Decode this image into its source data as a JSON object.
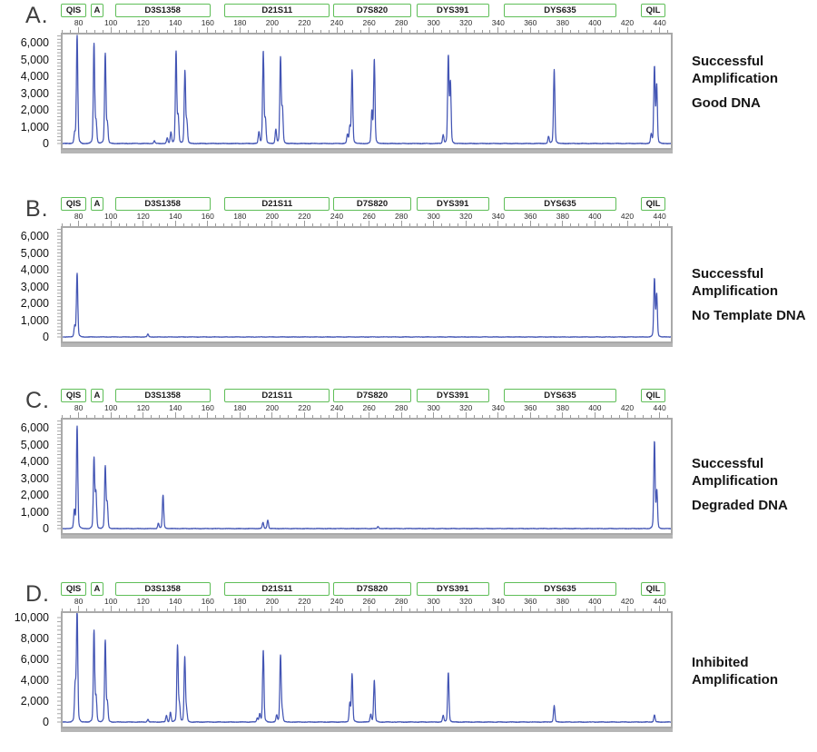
{
  "figure": {
    "colors": {
      "trace": "#4355b4",
      "frame": "#a9a9a9",
      "shadow": "#b6b6b6",
      "tick": "#9b9b9b",
      "marker_border": "#5fbe58",
      "marker_text": "#1d1d1d",
      "axis_text": "#111111",
      "letter_text": "#3f3f3f"
    },
    "x_domain": [
      69,
      447
    ],
    "x_unit": "bp",
    "y_unit": "RFU",
    "ruler_labels": [
      80,
      100,
      120,
      140,
      160,
      180,
      200,
      220,
      240,
      260,
      280,
      300,
      320,
      340,
      360,
      380,
      400,
      420,
      440
    ],
    "minor_tick_step": 5,
    "markers": [
      {
        "label": "QIS",
        "from": 69,
        "to": 83.6
      },
      {
        "label": "A",
        "from": 87.5,
        "to": 94.3
      },
      {
        "label": "D3S1358",
        "from": 102.5,
        "to": 160.5
      },
      {
        "label": "D21S11",
        "from": 170.5,
        "to": 234.5
      },
      {
        "label": "D7S820",
        "from": 237.8,
        "to": 285
      },
      {
        "label": "DYS391",
        "from": 289.4,
        "to": 333.2
      },
      {
        "label": "DYS635",
        "from": 343.3,
        "to": 412.3
      },
      {
        "label": "QIL",
        "from": 428.5,
        "to": 442.5
      }
    ]
  },
  "chart_data": [
    {
      "type": "line",
      "panel": "A.",
      "annotation_title": "Successful Amplification",
      "annotation_subtitle": "Good DNA",
      "yticks": [
        0,
        1000,
        2000,
        3000,
        4000,
        5000,
        6000
      ],
      "ytick_labels": [
        "0",
        "1,000",
        "2,000",
        "3,000",
        "4,000",
        "5,000",
        "6,000"
      ],
      "y_minor_step": 200,
      "noise_amp": 30,
      "peaks": [
        [
          76.5,
          550
        ],
        [
          78,
          6100
        ],
        [
          88.5,
          5650
        ],
        [
          89.8,
          1200
        ],
        [
          95.5,
          5100
        ],
        [
          96.8,
          1100
        ],
        [
          126,
          150
        ],
        [
          134,
          300
        ],
        [
          136.3,
          650
        ],
        [
          139.5,
          5200
        ],
        [
          140.8,
          1500
        ],
        [
          145,
          4100
        ],
        [
          146.2,
          1200
        ],
        [
          191,
          650
        ],
        [
          193.7,
          5200
        ],
        [
          195,
          1300
        ],
        [
          201.5,
          800
        ],
        [
          204.4,
          4850
        ],
        [
          205.6,
          1900
        ],
        [
          246,
          500
        ],
        [
          247.5,
          900
        ],
        [
          248.9,
          4150
        ],
        [
          261.2,
          1800
        ],
        [
          262.7,
          4750
        ],
        [
          305.5,
          500
        ],
        [
          308.7,
          4900
        ],
        [
          310,
          3400
        ],
        [
          371,
          400
        ],
        [
          374.5,
          4200
        ],
        [
          434.8,
          500
        ],
        [
          436.8,
          4300
        ],
        [
          438.2,
          3300
        ]
      ]
    },
    {
      "type": "line",
      "panel": "B.",
      "annotation_title": "Successful Amplification",
      "annotation_subtitle": "No Template DNA",
      "yticks": [
        0,
        1000,
        2000,
        3000,
        4000,
        5000,
        6000
      ],
      "ytick_labels": [
        "0",
        "1,000",
        "2,000",
        "3,000",
        "4,000",
        "5,000",
        "6,000"
      ],
      "y_minor_step": 200,
      "noise_amp": 22,
      "peaks": [
        [
          76.5,
          600
        ],
        [
          78,
          3600
        ],
        [
          122,
          160
        ],
        [
          436.8,
          3250
        ],
        [
          438.2,
          2400
        ]
      ]
    },
    {
      "type": "line",
      "panel": "C.",
      "annotation_title": "Successful Amplification",
      "annotation_subtitle": "Degraded DNA",
      "yticks": [
        0,
        1000,
        2000,
        3000,
        4000,
        5000,
        6000
      ],
      "ytick_labels": [
        "0",
        "1,000",
        "2,000",
        "3,000",
        "4,000",
        "5,000",
        "6,000"
      ],
      "y_minor_step": 200,
      "noise_amp": 25,
      "peaks": [
        [
          76.3,
          1000
        ],
        [
          78,
          5800
        ],
        [
          88.5,
          3950
        ],
        [
          89.7,
          2000
        ],
        [
          95.5,
          3500
        ],
        [
          96.7,
          1400
        ],
        [
          128.5,
          300
        ],
        [
          131.4,
          1900
        ],
        [
          193.5,
          350
        ],
        [
          196.5,
          480
        ],
        [
          265,
          120
        ],
        [
          436.8,
          4900
        ],
        [
          438.3,
          2100
        ]
      ]
    },
    {
      "type": "line",
      "panel": "D.",
      "annotation_title": "Inhibited Amplification",
      "annotation_subtitle": "",
      "yticks": [
        0,
        2000,
        4000,
        6000,
        8000,
        10000
      ],
      "ytick_labels": [
        "0",
        "2,000",
        "4,000",
        "6,000",
        "8,000",
        "10,000"
      ],
      "y_minor_step": 400,
      "noise_amp": 45,
      "peaks": [
        [
          76.8,
          3300
        ],
        [
          78,
          10100
        ],
        [
          88.5,
          8300
        ],
        [
          89.8,
          2200
        ],
        [
          95.5,
          7400
        ],
        [
          96.8,
          1700
        ],
        [
          122,
          250
        ],
        [
          133.5,
          600
        ],
        [
          136,
          900
        ],
        [
          140.4,
          7000
        ],
        [
          141.6,
          1500
        ],
        [
          144.9,
          5900
        ],
        [
          146,
          1000
        ],
        [
          190,
          350
        ],
        [
          191.5,
          700
        ],
        [
          193.7,
          6550
        ],
        [
          202,
          600
        ],
        [
          204.4,
          6100
        ],
        [
          205.5,
          900
        ],
        [
          247.5,
          1700
        ],
        [
          248.9,
          4350
        ],
        [
          260.5,
          700
        ],
        [
          262.7,
          3800
        ],
        [
          305.5,
          600
        ],
        [
          308.7,
          4500
        ],
        [
          374.5,
          1500
        ],
        [
          436.8,
          650
        ]
      ]
    }
  ]
}
